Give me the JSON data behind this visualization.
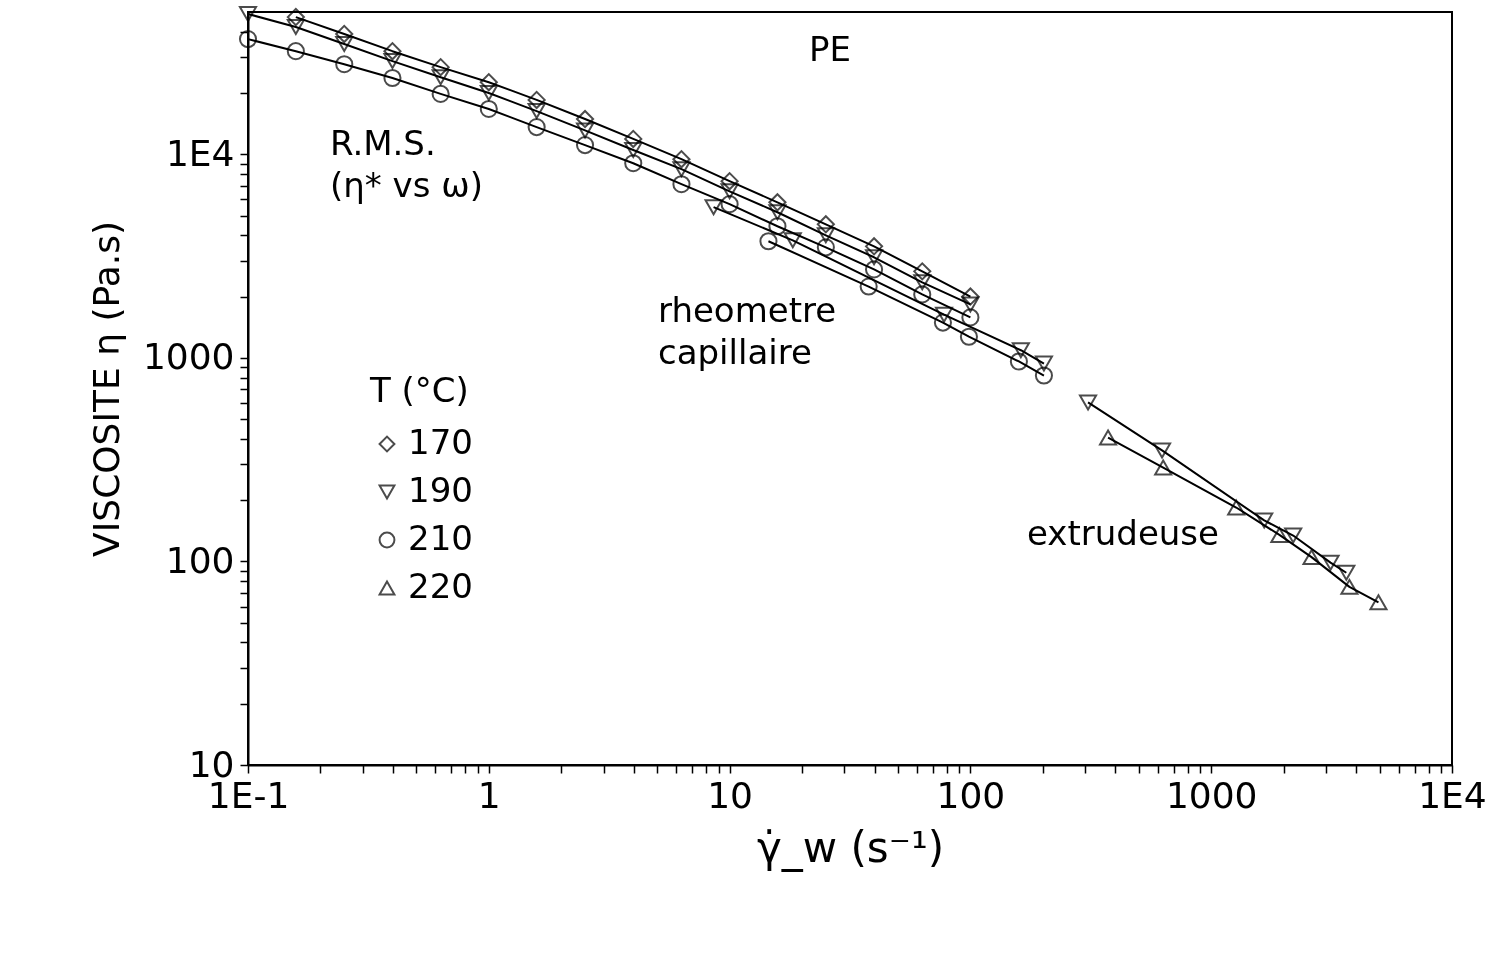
{
  "chart_data": {
    "type": "line",
    "xlabel": "γ̇_w (s⁻¹)",
    "ylabel": "VISCOSITE η (Pa.s)",
    "legend_title": "T (°C)",
    "annotations": [
      "PE",
      "R.M.S.\n(η* vs ω)",
      "rheometre\ncapillaire",
      "extrudeuse"
    ],
    "log": "xy",
    "grid": false,
    "legend": "left",
    "line_style": "solid",
    "xlim": [
      0.1,
      10000
    ],
    "ylim": [
      10,
      50000
    ],
    "xticks": [
      {
        "value": 0.1,
        "label": "1E-1"
      },
      {
        "value": 0.2,
        "label": null
      },
      {
        "value": 0.3,
        "label": null
      },
      {
        "value": 0.4,
        "label": null
      },
      {
        "value": 0.5,
        "label": null
      },
      {
        "value": 0.6,
        "label": null
      },
      {
        "value": 0.7,
        "label": null
      },
      {
        "value": 0.8,
        "label": null
      },
      {
        "value": 0.9,
        "label": null
      },
      1,
      {
        "value": 2,
        "label": null
      },
      {
        "value": 3,
        "label": null
      },
      {
        "value": 4,
        "label": null
      },
      {
        "value": 5,
        "label": null
      },
      {
        "value": 6,
        "label": null
      },
      {
        "value": 7,
        "label": null
      },
      {
        "value": 8,
        "label": null
      },
      {
        "value": 9,
        "label": null
      },
      10,
      {
        "value": 20,
        "label": null
      },
      {
        "value": 30,
        "label": null
      },
      {
        "value": 40,
        "label": null
      },
      {
        "value": 50,
        "label": null
      },
      {
        "value": 60,
        "label": null
      },
      {
        "value": 70,
        "label": null
      },
      {
        "value": 80,
        "label": null
      },
      {
        "value": 90,
        "label": null
      },
      100,
      {
        "value": 200,
        "label": null
      },
      {
        "value": 300,
        "label": null
      },
      {
        "value": 400,
        "label": null
      },
      {
        "value": 500,
        "label": null
      },
      {
        "value": 600,
        "label": null
      },
      {
        "value": 700,
        "label": null
      },
      {
        "value": 800,
        "label": null
      },
      {
        "value": 900,
        "label": null
      },
      1000,
      {
        "value": 2000,
        "label": null
      },
      {
        "value": 3000,
        "label": null
      },
      {
        "value": 4000,
        "label": null
      },
      {
        "value": 5000,
        "label": null
      },
      {
        "value": 6000,
        "label": null
      },
      {
        "value": 7000,
        "label": null
      },
      {
        "value": 8000,
        "label": null
      },
      {
        "value": 9000,
        "label": null
      },
      {
        "value": 10000,
        "label": "1E4"
      }
    ],
    "yticks": [
      10,
      {
        "value": 20,
        "label": null
      },
      {
        "value": 30,
        "label": null
      },
      {
        "value": 40,
        "label": null
      },
      {
        "value": 50,
        "label": null
      },
      {
        "value": 60,
        "label": null
      },
      {
        "value": 70,
        "label": null
      },
      {
        "value": 80,
        "label": null
      },
      {
        "value": 90,
        "label": null
      },
      100,
      {
        "value": 200,
        "label": null
      },
      {
        "value": 300,
        "label": null
      },
      {
        "value": 400,
        "label": null
      },
      {
        "value": 500,
        "label": null
      },
      {
        "value": 600,
        "label": null
      },
      {
        "value": 700,
        "label": null
      },
      {
        "value": 800,
        "label": null
      },
      {
        "value": 900,
        "label": null
      },
      1000,
      {
        "value": 2000,
        "label": null
      },
      {
        "value": 3000,
        "label": null
      },
      {
        "value": 4000,
        "label": null
      },
      {
        "value": 5000,
        "label": null
      },
      {
        "value": 6000,
        "label": null
      },
      {
        "value": 7000,
        "label": null
      },
      {
        "value": 8000,
        "label": null
      },
      {
        "value": 9000,
        "label": null
      },
      {
        "value": 10000,
        "label": "1E4"
      },
      {
        "value": 20000,
        "label": null
      },
      {
        "value": 30000,
        "label": null
      },
      {
        "value": 40000,
        "label": null
      }
    ],
    "series": [
      {
        "name": "170",
        "color": "#000000",
        "marker": "diamond",
        "x": [
          0.158,
          0.251,
          0.398,
          0.631,
          1,
          1.58,
          2.51,
          3.98,
          6.31,
          10,
          15.8,
          25.1,
          39.8,
          63.1,
          100
        ],
        "values": [
          47200,
          39000,
          32100,
          26800,
          22600,
          18500,
          14900,
          11900,
          9460,
          7380,
          5810,
          4530,
          3530,
          2660,
          2000
        ]
      },
      {
        "name": "190",
        "color": "#000000",
        "marker": "triangle-down",
        "x": [
          0.1,
          0.158,
          0.251,
          0.398,
          0.631,
          1,
          1.58,
          2.51,
          3.98,
          6.31,
          10,
          15.8,
          25.1,
          39.8,
          63.1,
          100
        ],
        "values": [
          48900,
          42200,
          34800,
          28700,
          23900,
          20000,
          16300,
          13100,
          10500,
          8450,
          6580,
          5190,
          4000,
          3120,
          2350,
          1830
        ]
      },
      {
        "name": "210",
        "color": "#000000",
        "marker": "circle",
        "x": [
          0.1,
          0.158,
          0.251,
          0.398,
          0.631,
          1,
          1.58,
          2.51,
          3.98,
          6.31,
          10,
          15.8,
          25.1,
          39.8,
          63.1,
          100
        ],
        "values": [
          36800,
          32100,
          27700,
          23700,
          19800,
          16700,
          13600,
          11100,
          9040,
          7130,
          5690,
          4430,
          3490,
          2720,
          2050,
          1580
        ]
      },
      {
        "name": "220",
        "color": "#000000",
        "marker": "triangle",
        "x": [
          373,
          632,
          1270,
          1920,
          2610,
          3750,
          4950
        ],
        "values": [
          406,
          289,
          184,
          135,
          105,
          75,
          63
        ]
      },
      {
        "color": "#000000",
        "marker": "triangle-down",
        "x": [
          8.58,
          18.3,
          77.7,
          162,
          202
        ],
        "values": [
          5500,
          3780,
          1630,
          1090,
          938
        ]
      },
      {
        "color": "#000000",
        "marker": "circle",
        "x": [
          14.5,
          37.8,
          76.9,
          98.6,
          159,
          202
        ],
        "values": [
          3740,
          2240,
          1490,
          1270,
          960,
          819
        ]
      },
      {
        "color": "#000000",
        "marker": "triangle-down",
        "x": [
          308,
          625,
          1660,
          2190,
          3130,
          3640
        ],
        "values": [
          604,
          351,
          159,
          134,
          98.6,
          88
        ]
      }
    ]
  }
}
